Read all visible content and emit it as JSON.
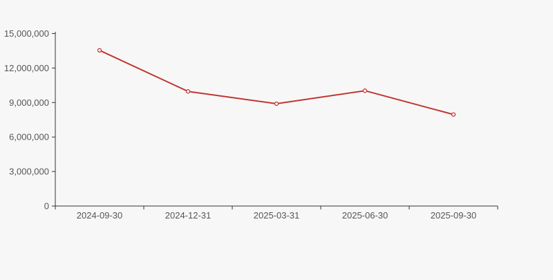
{
  "chart": {
    "background_color": "#f7f7f7",
    "line_color": "#c23531",
    "axis_color": "#333333",
    "label_color": "#555555"
  },
  "chart_data": {
    "type": "line",
    "title": "",
    "xlabel": "",
    "ylabel": "",
    "x": [
      "2024-09-30",
      "2024-12-31",
      "2025-03-31",
      "2025-06-30",
      "2025-09-30"
    ],
    "values": [
      13540000,
      9970000,
      8900000,
      10030000,
      7960000
    ],
    "ylim": [
      0,
      15000000
    ],
    "y_ticks": [
      0,
      3000000,
      6000000,
      9000000,
      12000000,
      15000000
    ],
    "y_tick_labels": [
      "0",
      "3,000,000",
      "6,000,000",
      "9,000,000",
      "12,000,000",
      "15,000,000"
    ],
    "grid": false,
    "legend": false,
    "marker": "open-circle"
  }
}
